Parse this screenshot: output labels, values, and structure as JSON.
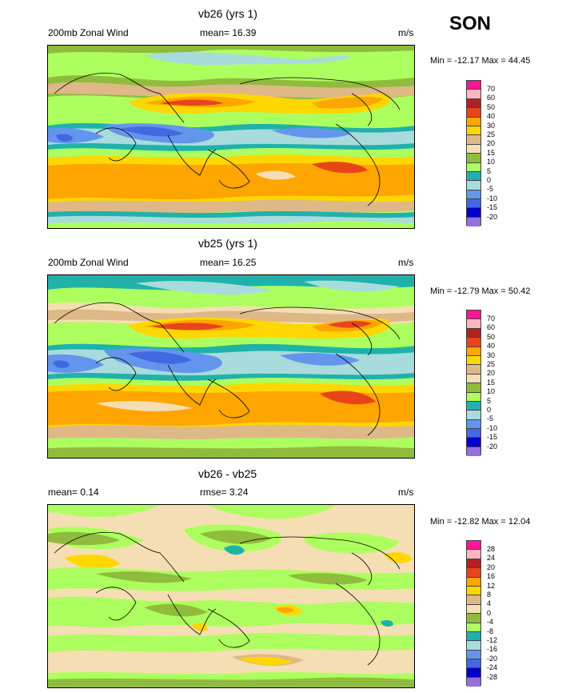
{
  "season": "SON",
  "panels": [
    {
      "title": "vb26 (yrs 1)",
      "left_label": "200mb Zonal Wind",
      "center_label": "mean=  16.39",
      "units": "m/s",
      "minmax": "Min = -12.17 Max =  44.45",
      "levels": [
        "70",
        "60",
        "50",
        "40",
        "30",
        "25",
        "20",
        "15",
        "10",
        "5",
        "0",
        "-5",
        "-10",
        "-15",
        "-20"
      ],
      "colors": [
        "#ff1493",
        "#ffb6c1",
        "#b22222",
        "#e8441a",
        "#ffa500",
        "#ffd700",
        "#deb887",
        "#f5deb3",
        "#8fbc3c",
        "#adff5f",
        "#20b2aa",
        "#a8dcdc",
        "#6495ed",
        "#4169e1",
        "#0000cd",
        "#9370db"
      ]
    },
    {
      "title": "vb25 (yrs 1)",
      "left_label": "200mb Zonal Wind",
      "center_label": "mean=  16.25",
      "units": "m/s",
      "minmax": "Min = -12.79 Max =  50.42",
      "levels": [
        "70",
        "60",
        "50",
        "40",
        "30",
        "25",
        "20",
        "15",
        "10",
        "5",
        "0",
        "-5",
        "-10",
        "-15",
        "-20"
      ],
      "colors": [
        "#ff1493",
        "#ffb6c1",
        "#b22222",
        "#e8441a",
        "#ffa500",
        "#ffd700",
        "#deb887",
        "#f5deb3",
        "#8fbc3c",
        "#adff5f",
        "#20b2aa",
        "#a8dcdc",
        "#6495ed",
        "#4169e1",
        "#0000cd",
        "#9370db"
      ]
    },
    {
      "title": "vb26 - vb25",
      "left_label": "mean=   0.14",
      "center_label": "rmse=   3.24",
      "units": "m/s",
      "minmax": "Min = -12.82 Max =  12.04",
      "levels": [
        "28",
        "24",
        "20",
        "16",
        "12",
        "8",
        "4",
        "0",
        "-4",
        "-8",
        "-12",
        "-16",
        "-20",
        "-24",
        "-28"
      ],
      "colors": [
        "#ff1493",
        "#ffb6c1",
        "#b22222",
        "#e8441a",
        "#ffa500",
        "#ffd700",
        "#deb887",
        "#f5deb3",
        "#8fbc3c",
        "#adff5f",
        "#20b2aa",
        "#a8dcdc",
        "#6495ed",
        "#4169e1",
        "#0000cd",
        "#9370db"
      ]
    }
  ]
}
